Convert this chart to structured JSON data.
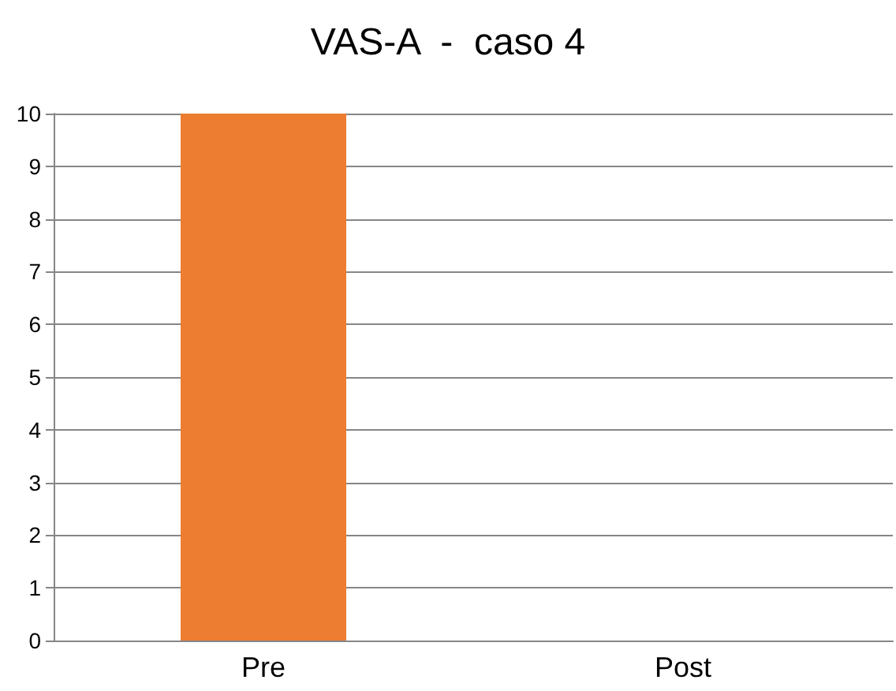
{
  "chart_data": {
    "type": "bar",
    "title": "VAS-A  -  caso 4",
    "categories": [
      "Pre",
      "Post"
    ],
    "values": [
      10,
      0
    ],
    "color": "#ed7d31",
    "ylim": [
      0,
      10
    ],
    "yticks": [
      0,
      1,
      2,
      3,
      4,
      5,
      6,
      7,
      8,
      9,
      10
    ],
    "grid": "y"
  }
}
